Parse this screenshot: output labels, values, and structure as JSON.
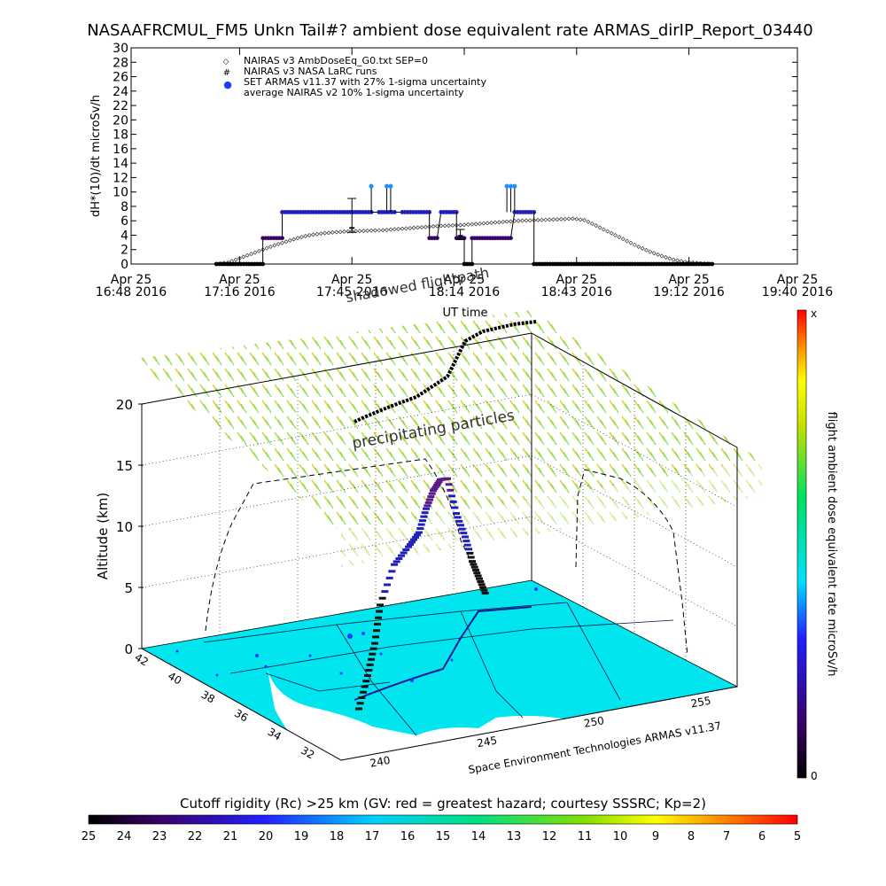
{
  "title": "NASAAFRCMUL_FM5 Unkn Tail#? ambient dose equivalent rate ARMAS_dirIP_Report_03440",
  "chart_data": [
    {
      "type": "scatter",
      "ylabel": "dH*(10)/dt microSv/h",
      "xlabel": "UT time",
      "ylim": [
        0,
        30
      ],
      "yticks": [
        0,
        2,
        4,
        6,
        8,
        10,
        12,
        14,
        16,
        18,
        20,
        22,
        24,
        26,
        28,
        30
      ],
      "xlim_minutes": [
        0,
        172
      ],
      "xticks": [
        {
          "m": 0,
          "l1": "Apr 25",
          "l2": "16:48 2016"
        },
        {
          "m": 28,
          "l1": "Apr 25",
          "l2": "17:16 2016"
        },
        {
          "m": 57,
          "l1": "Apr 25",
          "l2": "17:45 2016"
        },
        {
          "m": 86,
          "l1": "Apr 25",
          "l2": "18:14 2016"
        },
        {
          "m": 115,
          "l1": "Apr 25",
          "l2": "18:43 2016"
        },
        {
          "m": 144,
          "l1": "Apr 25",
          "l2": "19:12 2016"
        },
        {
          "m": 172,
          "l1": "Apr 25",
          "l2": "19:40 2016"
        }
      ],
      "legend": [
        {
          "symbol": "◇",
          "label": "NAIRAS v3 AmbDoseEq_G0.txt SEP=0"
        },
        {
          "symbol": "#",
          "label": "NAIRAS v3 NASA LaRC runs"
        },
        {
          "symbol": "●",
          "label": "SET ARMAS v11.37 with 27% 1-sigma uncertainty"
        },
        {
          "symbol": "",
          "label": "average NAIRAS v2 10% 1-sigma uncertainty"
        }
      ],
      "nairas_v3": [
        [
          22,
          0
        ],
        [
          25,
          0.2
        ],
        [
          28,
          0.8
        ],
        [
          31,
          1.4
        ],
        [
          34,
          2
        ],
        [
          37,
          2.6
        ],
        [
          40,
          3.1
        ],
        [
          43,
          3.6
        ],
        [
          46,
          4
        ],
        [
          50,
          4.3
        ],
        [
          55,
          4.5
        ],
        [
          60,
          4.6
        ],
        [
          65,
          4.7
        ],
        [
          70,
          4.9
        ],
        [
          75,
          5.1
        ],
        [
          80,
          5.3
        ],
        [
          85,
          5.4
        ],
        [
          90,
          5.6
        ],
        [
          95,
          5.8
        ],
        [
          100,
          6
        ],
        [
          105,
          6.1
        ],
        [
          110,
          6.2
        ],
        [
          114,
          6.3
        ],
        [
          117,
          6.1
        ],
        [
          119,
          5.6
        ],
        [
          122,
          4.8
        ],
        [
          125,
          4
        ],
        [
          128,
          3.2
        ],
        [
          131,
          2.4
        ],
        [
          134,
          1.7
        ],
        [
          137,
          1.1
        ],
        [
          140,
          0.6
        ],
        [
          143,
          0.3
        ],
        [
          147,
          0.1
        ],
        [
          150,
          0
        ]
      ],
      "armas_segments": [
        [
          [
            22,
            0
          ],
          [
            34,
            0
          ]
        ],
        [
          [
            34,
            3.6
          ],
          [
            39,
            3.6
          ]
        ],
        [
          [
            39,
            7.2
          ],
          [
            62,
            7.2
          ]
        ],
        [
          [
            64,
            7.2
          ],
          [
            68,
            7.2
          ]
        ],
        [
          [
            70,
            7.2
          ],
          [
            77,
            7.2
          ]
        ],
        [
          [
            77,
            3.6
          ],
          [
            79,
            3.6
          ]
        ],
        [
          [
            80,
            7.2
          ],
          [
            84,
            7.2
          ]
        ],
        [
          [
            84,
            3.6
          ],
          [
            86,
            3.6
          ]
        ],
        [
          [
            86,
            0
          ],
          [
            88,
            0
          ]
        ],
        [
          [
            88,
            3.6
          ],
          [
            98,
            3.6
          ]
        ],
        [
          [
            99,
            7.2
          ],
          [
            104,
            7.2
          ]
        ],
        [
          [
            104,
            0
          ],
          [
            150,
            0
          ]
        ]
      ],
      "armas_peaks": [
        [
          62,
          10.8
        ],
        [
          66,
          10.8
        ],
        [
          67,
          10.8
        ],
        [
          97,
          10.8
        ],
        [
          98,
          10.8
        ],
        [
          99,
          10.8
        ]
      ],
      "larc_errorbars": [
        [
          57,
          5,
          9.1,
          4.4
        ],
        [
          85,
          3.9,
          4.8,
          3.4
        ]
      ],
      "track_label": "shadowed flightpath"
    },
    {
      "type": "heatmap",
      "zlabel": "Altitude (km)",
      "zticks": [
        0,
        5,
        10,
        15,
        20
      ],
      "lat_ticks": [
        32,
        34,
        36,
        38,
        40,
        42
      ],
      "lon_ticks": [
        240,
        245,
        250,
        255
      ],
      "wall_label": "precipitating particles",
      "credit": "Space Environment Technologies ARMAS v11.37",
      "colorbar_label": "flight ambient dose equivalent rate microSv/h",
      "colorbar_top": "x",
      "colorbar_bottom": "0",
      "altitude_profile": [
        [
          0,
          0
        ],
        [
          0.05,
          2
        ],
        [
          0.09,
          4
        ],
        [
          0.12,
          6.5
        ],
        [
          0.2,
          8.8
        ],
        [
          0.28,
          9.5
        ],
        [
          0.34,
          10.1
        ],
        [
          0.38,
          11.5
        ],
        [
          0.42,
          12.5
        ],
        [
          0.46,
          13
        ],
        [
          0.5,
          12.8
        ],
        [
          0.55,
          10
        ],
        [
          0.6,
          8
        ],
        [
          0.64,
          6
        ],
        [
          0.68,
          4.5
        ],
        [
          0.72,
          3
        ]
      ],
      "cutoff_caption": "Cutoff rigidity (Rc) >25 km (GV: red = greatest hazard; courtesy SSSRC; Kp=2)",
      "rc_ticks": [
        "25",
        "24",
        "23",
        "22",
        "21",
        "20",
        "19",
        "18",
        "17",
        "16",
        "15",
        "14",
        "13",
        "12",
        "11",
        "10",
        "9",
        "8",
        "7",
        "6",
        "5"
      ],
      "colors": {
        "rate_color": "#2020c0",
        "peak_color": "#1e90ff",
        "ground": "#00e5ee",
        "wall": "#a8d84a"
      }
    }
  ]
}
